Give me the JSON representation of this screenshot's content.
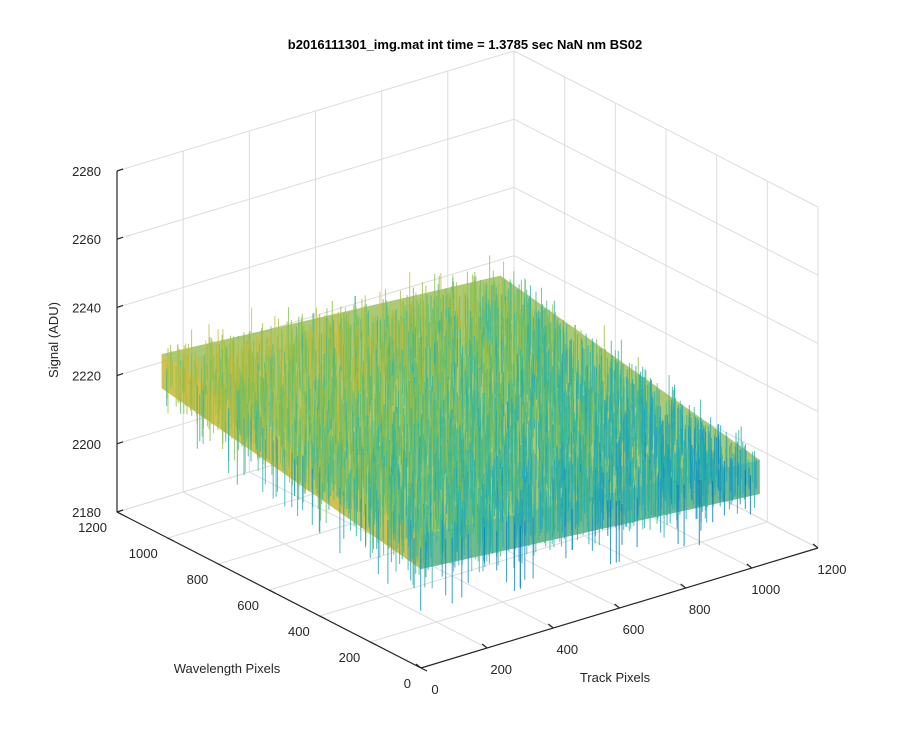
{
  "chart_data": {
    "type": "surface",
    "title": "b2016111301_img.mat int time = 1.3785 sec  NaN nm BS02",
    "xlabel": "Track Pixels",
    "ylabel": "Wavelength Pixels",
    "zlabel": "Signal (ADU)",
    "xlim": [
      0,
      1200
    ],
    "ylim": [
      0,
      1200
    ],
    "zlim": [
      2180,
      2280
    ],
    "xticks": [
      "0",
      "200",
      "400",
      "600",
      "800",
      "1000",
      "1200"
    ],
    "yticks": [
      "0",
      "200",
      "400",
      "600",
      "800",
      "1000",
      "1200"
    ],
    "zticks": [
      "2180",
      "2200",
      "2220",
      "2240",
      "2260",
      "2280"
    ],
    "x_extent": [
      0,
      1024
    ],
    "y_extent": [
      0,
      1024
    ],
    "approx_signal": {
      "corner_x0_y0": 2215,
      "corner_x1024_y0": 2207,
      "corner_x0_y1024": 2229,
      "corner_x1024_y1024": 2222,
      "noise_amplitude": 12
    },
    "colormap": [
      "#0072bd",
      "#1aa0c4",
      "#35b89a",
      "#8fc04a",
      "#d8b83a",
      "#f5c93a"
    ],
    "grid": true,
    "view": "3d"
  }
}
